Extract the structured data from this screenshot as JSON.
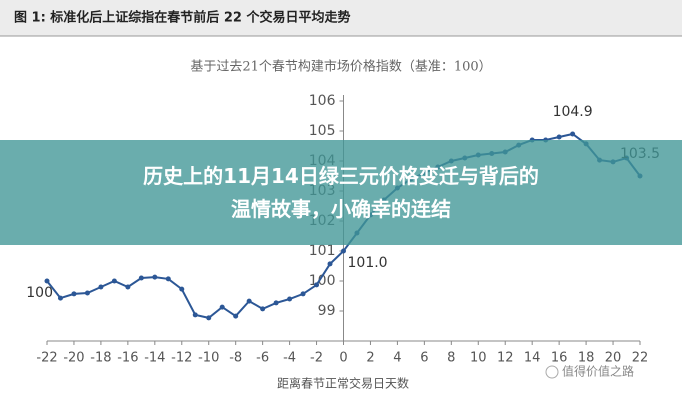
{
  "header": {
    "title": "图 1: 标准化后上证综指在春节前后 22 个交易日平均走势"
  },
  "chart_data": {
    "type": "line",
    "subtitle": "基于过去21个春节构建市场价格指数（基准：100）",
    "x_label": "距离春节正常交易日天数",
    "x": [
      -22,
      -21,
      -20,
      -19,
      -18,
      -17,
      -16,
      -15,
      -14,
      -13,
      -12,
      -11,
      -10,
      -9,
      -8,
      -7,
      -6,
      -5,
      -4,
      -3,
      -2,
      -1,
      0,
      1,
      2,
      3,
      4,
      5,
      6,
      7,
      8,
      9,
      10,
      11,
      12,
      13,
      14,
      15,
      16,
      17,
      18,
      19,
      20,
      21,
      22
    ],
    "series": [
      {
        "color": "#2c5796",
        "values": [
          100,
          99.43,
          99.57,
          99.6,
          99.8,
          100,
          99.8,
          100.1,
          100.13,
          100.07,
          99.73,
          98.87,
          98.77,
          99.13,
          98.83,
          99.33,
          99.07,
          99.27,
          99.4,
          99.57,
          99.87,
          100.57,
          101.0,
          101.6,
          102.2,
          102.7,
          103.1,
          103.4,
          103.6,
          103.8,
          104.0,
          104.1,
          104.2,
          104.25,
          104.3,
          104.53,
          104.7,
          104.7,
          104.8,
          104.9,
          104.57,
          104.03,
          103.97,
          104.1,
          103.5
        ]
      }
    ],
    "xlim": [
      -22,
      22
    ],
    "xticks": [
      -22,
      -20,
      -18,
      -16,
      -14,
      -12,
      -10,
      -8,
      -6,
      -4,
      -2,
      0,
      2,
      4,
      6,
      8,
      10,
      12,
      14,
      16,
      18,
      20,
      22
    ],
    "ylim": [
      98,
      106
    ],
    "yticks": [
      99,
      100,
      101,
      102,
      103,
      104,
      105,
      106
    ],
    "annotations": [
      {
        "x": -22,
        "y": 100,
        "label": "100",
        "anchor": "end"
      },
      {
        "x": 0,
        "y": 101.0,
        "label": "101.0",
        "anchor": "start"
      },
      {
        "x": 17,
        "y": 104.9,
        "label": "104.9",
        "anchor": "middle"
      },
      {
        "x": 22,
        "y": 103.5,
        "label": "103.5",
        "anchor": "middle"
      }
    ]
  },
  "overlay": {
    "headline_lines": [
      "历史上的11月14日绿三元价格变迁与背后的",
      "温情故事，小确幸的连结"
    ],
    "watermark": "值得价值之路"
  }
}
